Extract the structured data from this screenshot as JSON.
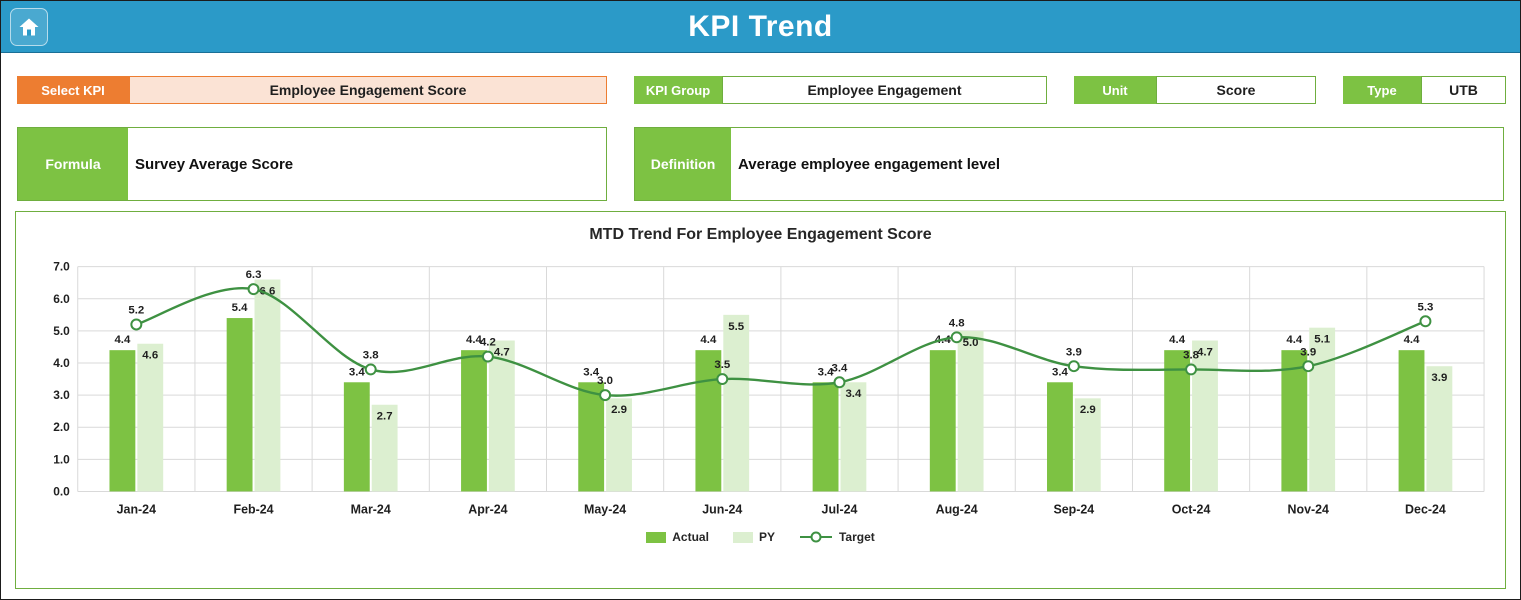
{
  "header": {
    "title": "KPI Trend"
  },
  "filters": {
    "select_kpi": {
      "label": "Select KPI",
      "value": "Employee Engagement Score"
    },
    "kpi_group": {
      "label": "KPI Group",
      "value": "Employee Engagement"
    },
    "unit": {
      "label": "Unit",
      "value": "Score"
    },
    "type": {
      "label": "Type",
      "value": "UTB"
    }
  },
  "details": {
    "formula": {
      "label": "Formula",
      "value": "Survey Average Score"
    },
    "definition": {
      "label": "Definition",
      "value": "Average employee engagement level"
    }
  },
  "chart_data": {
    "type": "bar",
    "title": "MTD Trend For Employee Engagement Score",
    "categories": [
      "Jan-24",
      "Feb-24",
      "Mar-24",
      "Apr-24",
      "May-24",
      "Jun-24",
      "Jul-24",
      "Aug-24",
      "Sep-24",
      "Oct-24",
      "Nov-24",
      "Dec-24"
    ],
    "series": [
      {
        "name": "Actual",
        "type": "bar",
        "color": "#7DC243",
        "values": [
          4.4,
          5.4,
          3.4,
          4.4,
          3.4,
          4.4,
          3.4,
          4.4,
          3.4,
          4.4,
          4.4,
          4.4
        ]
      },
      {
        "name": "PY",
        "type": "bar",
        "color": "#DCEFD0",
        "values": [
          4.6,
          6.6,
          2.7,
          4.7,
          2.9,
          5.5,
          3.4,
          5.0,
          2.9,
          4.7,
          5.1,
          3.9
        ]
      },
      {
        "name": "Target",
        "type": "line",
        "color": "#3E9142",
        "values": [
          5.2,
          6.3,
          3.8,
          4.2,
          3.0,
          3.5,
          3.4,
          4.8,
          3.9,
          3.8,
          3.9,
          5.3
        ]
      }
    ],
    "ylim": [
      0,
      7
    ],
    "ytick_step": 1,
    "grid": true,
    "legend_position": "bottom"
  },
  "colors": {
    "header_bg": "#2B9AC8",
    "header_text": "#FFFFFF",
    "accent_orange": "#ED7D31",
    "orange_fill": "#FBE3D5",
    "accent_green": "#7DC243",
    "border_green": "#6FAE3F",
    "grid": "#D9D9D9",
    "text_dark": "#1F1F1F"
  }
}
